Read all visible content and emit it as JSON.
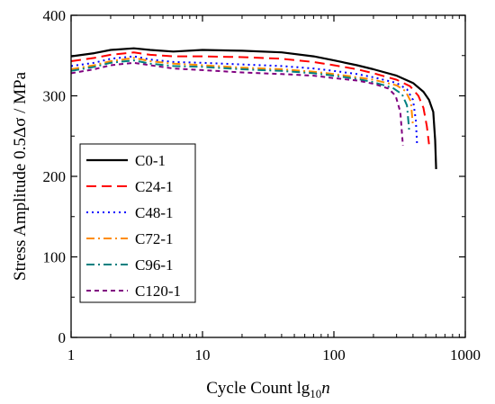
{
  "chart_data": {
    "type": "line",
    "xlabel": "Cycle Count lg",
    "xlabel_sub": "10",
    "xlabel_var": "n",
    "ylabel": "Stress Amplitude 0.5Δσ / MPa",
    "x_scale": "log",
    "xlim": [
      1,
      1000
    ],
    "ylim": [
      0,
      400
    ],
    "x_ticks": [
      "1",
      "10",
      "100",
      "1000"
    ],
    "y_ticks": [
      "0",
      "100",
      "200",
      "300",
      "400"
    ],
    "grid": false,
    "legend_position": "bottom-left",
    "series": [
      {
        "name": "C0-1",
        "color": "#000000",
        "dash": "solid",
        "x": [
          1,
          1.5,
          2,
          3,
          4,
          6,
          10,
          20,
          40,
          70,
          100,
          150,
          200,
          300,
          400,
          480,
          530,
          570,
          590,
          600
        ],
        "y": [
          349,
          353,
          357,
          359,
          357,
          355,
          357,
          356,
          354,
          349,
          344,
          338,
          333,
          325,
          316,
          305,
          295,
          280,
          245,
          209
        ]
      },
      {
        "name": "C24-1",
        "color": "#ff0000",
        "dash": "long-dash",
        "x": [
          1,
          1.5,
          2,
          3,
          4,
          6,
          10,
          20,
          40,
          70,
          100,
          150,
          200,
          300,
          380,
          440,
          480,
          510,
          530
        ],
        "y": [
          343,
          347,
          351,
          354,
          351,
          349,
          349,
          348,
          346,
          342,
          338,
          333,
          328,
          320,
          312,
          300,
          285,
          262,
          240
        ]
      },
      {
        "name": "C48-1",
        "color": "#0000ff",
        "dash": "dot",
        "x": [
          1,
          1.5,
          2,
          3,
          4,
          6,
          10,
          20,
          40,
          70,
          100,
          150,
          200,
          300,
          360,
          400,
          420,
          430
        ],
        "y": [
          337,
          341,
          346,
          349,
          345,
          342,
          341,
          339,
          337,
          334,
          331,
          327,
          323,
          316,
          308,
          295,
          270,
          238
        ]
      },
      {
        "name": "C72-1",
        "color": "#ff8c00",
        "dash": "dash-dot",
        "x": [
          1,
          1.5,
          2,
          3,
          4,
          6,
          10,
          20,
          40,
          70,
          100,
          150,
          200,
          300,
          350,
          385,
          400
        ],
        "y": [
          333,
          338,
          343,
          347,
          343,
          340,
          338,
          335,
          333,
          330,
          327,
          323,
          320,
          313,
          306,
          293,
          262
        ]
      },
      {
        "name": "C96-1",
        "color": "#008080",
        "dash": "dash-dot",
        "x": [
          1,
          1.5,
          2,
          3,
          4,
          6,
          10,
          20,
          40,
          70,
          100,
          150,
          200,
          280,
          330,
          360,
          375
        ],
        "y": [
          331,
          336,
          341,
          344,
          340,
          337,
          336,
          333,
          331,
          328,
          325,
          321,
          317,
          310,
          302,
          288,
          255
        ]
      },
      {
        "name": "C120-1",
        "color": "#800080",
        "dash": "short-dash",
        "x": [
          1,
          1.5,
          2,
          3,
          4,
          6,
          10,
          20,
          40,
          70,
          100,
          150,
          200,
          260,
          295,
          320,
          335
        ],
        "y": [
          328,
          333,
          338,
          341,
          338,
          334,
          332,
          329,
          327,
          325,
          322,
          319,
          315,
          309,
          300,
          280,
          238
        ]
      }
    ]
  }
}
